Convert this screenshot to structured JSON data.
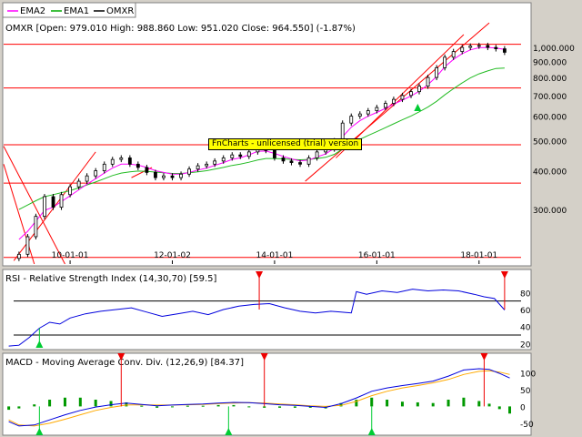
{
  "legend": [
    {
      "label": "EMA2",
      "color": "#ff00ff"
    },
    {
      "label": "EMA1",
      "color": "#00aa00"
    },
    {
      "label": "OMXR",
      "color": "#000000"
    }
  ],
  "watermark": "FnCharts - unlicensed (trial) version",
  "colors": {
    "candle": "#000000",
    "ema2": "#ff00ff",
    "ema1": "#22bb22",
    "hline": "#ff0000",
    "trend": "#ff0000",
    "rsi": "#0000dd",
    "macd": "#0000dd",
    "signal": "#ffaa00",
    "hist": "#009900",
    "buy": "#00cc33",
    "sell": "#ee0000",
    "grid": "#cccccc"
  },
  "chart_data": [
    {
      "type": "candlestick",
      "title": "OMXR [Open: 979.010  High: 988.860  Low: 951.020  Close: 964.550]  (-1.87%)",
      "scale": "log",
      "ylim": [
        200,
        1100
      ],
      "y_ticks": [
        "1,000.000",
        "900.000",
        "800.000",
        "700.000",
        "600.000",
        "500.000",
        "400.000",
        "300.000"
      ],
      "y_tick_values": [
        1000,
        900,
        800,
        700,
        600,
        500,
        400,
        300
      ],
      "x_ticks": [
        "10-01-01",
        "12-01-02",
        "14-01-01",
        "16-01-01",
        "18-01-01"
      ],
      "x_tick_values": [
        2010.0,
        2012.0,
        2014.0,
        2016.0,
        2018.0
      ],
      "xlim": [
        2008.7,
        2019.0
      ],
      "horizontal_lines": [
        1024,
        740,
        485,
        365,
        210
      ],
      "trend_lines": [
        {
          "from": [
            2008.9,
            205
          ],
          "to": [
            2010.5,
            460
          ]
        },
        {
          "from": [
            2008.7,
            480
          ],
          "to": [
            2009.9,
            200
          ]
        },
        {
          "from": [
            2008.7,
            420
          ],
          "to": [
            2009.3,
            200
          ]
        },
        {
          "from": [
            2011.2,
            380
          ],
          "to": [
            2011.6,
            410
          ]
        },
        {
          "from": [
            2014.6,
            370
          ],
          "to": [
            2018.2,
            1200
          ]
        },
        {
          "from": [
            2015.2,
            440
          ],
          "to": [
            2017.7,
            1100
          ]
        }
      ],
      "dates": [
        2009.0,
        2009.17,
        2009.33,
        2009.5,
        2009.67,
        2009.83,
        2010.0,
        2010.17,
        2010.33,
        2010.5,
        2010.67,
        2010.83,
        2011.0,
        2011.17,
        2011.33,
        2011.5,
        2011.67,
        2011.83,
        2012.0,
        2012.17,
        2012.33,
        2012.5,
        2012.67,
        2012.83,
        2013.0,
        2013.17,
        2013.33,
        2013.5,
        2013.67,
        2013.83,
        2014.0,
        2014.17,
        2014.33,
        2014.5,
        2014.67,
        2014.83,
        2015.0,
        2015.17,
        2015.33,
        2015.5,
        2015.67,
        2015.83,
        2016.0,
        2016.17,
        2016.33,
        2016.5,
        2016.67,
        2016.83,
        2017.0,
        2017.17,
        2017.33,
        2017.5,
        2017.67,
        2017.83,
        2018.0,
        2018.17,
        2018.33,
        2018.5
      ],
      "close": [
        215,
        245,
        285,
        330,
        305,
        335,
        355,
        370,
        385,
        400,
        420,
        435,
        440,
        420,
        410,
        395,
        380,
        385,
        380,
        390,
        405,
        415,
        420,
        430,
        440,
        450,
        445,
        460,
        475,
        465,
        440,
        430,
        425,
        420,
        440,
        460,
        470,
        500,
        570,
        600,
        610,
        625,
        640,
        660,
        680,
        700,
        720,
        750,
        800,
        860,
        930,
        970,
        1000,
        1010,
        1015,
        1000,
        990,
        964.55
      ],
      "ema1": [
        300,
        310,
        320,
        330,
        335,
        340,
        345,
        352,
        360,
        368,
        377,
        386,
        393,
        397,
        399,
        398,
        396,
        394,
        392,
        392,
        394,
        397,
        400,
        405,
        410,
        416,
        420,
        426,
        433,
        438,
        438,
        437,
        435,
        434,
        435,
        438,
        442,
        452,
        470,
        488,
        505,
        520,
        535,
        551,
        567,
        584,
        601,
        620,
        642,
        670,
        703,
        736,
        768,
        797,
        822,
        840,
        855,
        858
      ],
      "ema2": [
        240,
        255,
        275,
        298,
        305,
        318,
        332,
        347,
        362,
        377,
        393,
        408,
        420,
        420,
        417,
        410,
        400,
        395,
        390,
        390,
        395,
        402,
        408,
        416,
        425,
        435,
        440,
        450,
        462,
        463,
        455,
        445,
        437,
        430,
        433,
        443,
        453,
        473,
        515,
        553,
        580,
        600,
        617,
        636,
        656,
        676,
        697,
        722,
        758,
        806,
        866,
        915,
        955,
        982,
        998,
        1000,
        996,
        985
      ],
      "buy_signals": [
        2016.8
      ],
      "sell_signals": []
    },
    {
      "type": "line",
      "title": "RSI - Relative Strength Index (14,30,70) [59.5]",
      "ylim": [
        15,
        90
      ],
      "y_ticks": [
        "80",
        "60",
        "40",
        "20"
      ],
      "y_tick_values": [
        80,
        60,
        40,
        20
      ],
      "levels": [
        70,
        30
      ],
      "x": [
        2008.8,
        2009.0,
        2009.2,
        2009.4,
        2009.6,
        2009.8,
        2010.0,
        2010.3,
        2010.6,
        2010.9,
        2011.2,
        2011.5,
        2011.8,
        2012.1,
        2012.4,
        2012.7,
        2013.0,
        2013.3,
        2013.6,
        2013.9,
        2014.2,
        2014.5,
        2014.8,
        2015.1,
        2015.3,
        2015.5,
        2015.6,
        2015.8,
        2016.1,
        2016.4,
        2016.7,
        2017.0,
        2017.3,
        2017.6,
        2017.9,
        2018.1,
        2018.3,
        2018.5
      ],
      "values": [
        17,
        18,
        27,
        38,
        45,
        43,
        50,
        55,
        58,
        60,
        62,
        57,
        52,
        55,
        58,
        54,
        60,
        64,
        66,
        67,
        62,
        58,
        56,
        58,
        57,
        56,
        81,
        78,
        82,
        80,
        84,
        82,
        83,
        82,
        78,
        75,
        73,
        59.5
      ],
      "buy_signals": [
        2009.4
      ],
      "sell_signals": [
        2013.7,
        2018.5
      ]
    },
    {
      "type": "line",
      "title": "MACD - Moving Average Conv. Div. (12,26,9) [84.37]",
      "ylim": [
        -80,
        120
      ],
      "y_ticks": [
        "100",
        "50",
        "0",
        "-50"
      ],
      "y_tick_values": [
        100,
        50,
        0,
        -50
      ],
      "x": [
        2008.8,
        2009.0,
        2009.3,
        2009.6,
        2009.9,
        2010.2,
        2010.5,
        2010.8,
        2011.1,
        2011.4,
        2011.7,
        2012.0,
        2012.3,
        2012.6,
        2012.9,
        2013.2,
        2013.5,
        2013.8,
        2014.1,
        2014.4,
        2014.7,
        2015.0,
        2015.3,
        2015.6,
        2015.9,
        2016.2,
        2016.5,
        2016.8,
        2017.1,
        2017.4,
        2017.7,
        2018.0,
        2018.2,
        2018.4,
        2018.6
      ],
      "macd": [
        -45,
        -58,
        -55,
        -40,
        -25,
        -12,
        -2,
        5,
        10,
        6,
        2,
        4,
        6,
        7,
        10,
        12,
        11,
        8,
        5,
        3,
        0,
        -3,
        8,
        25,
        45,
        55,
        62,
        68,
        75,
        90,
        108,
        112,
        110,
        98,
        84.37
      ],
      "signal": [
        -40,
        -55,
        -58,
        -50,
        -38,
        -25,
        -12,
        -3,
        4,
        5,
        4,
        4,
        5,
        6,
        8,
        10,
        11,
        10,
        7,
        5,
        2,
        0,
        3,
        15,
        32,
        45,
        55,
        62,
        70,
        80,
        95,
        104,
        106,
        102,
        95
      ],
      "buy_signals": [
        2009.4,
        2013.1,
        2015.9
      ],
      "sell_signals": [
        2011.0,
        2013.8,
        2018.1
      ]
    }
  ]
}
